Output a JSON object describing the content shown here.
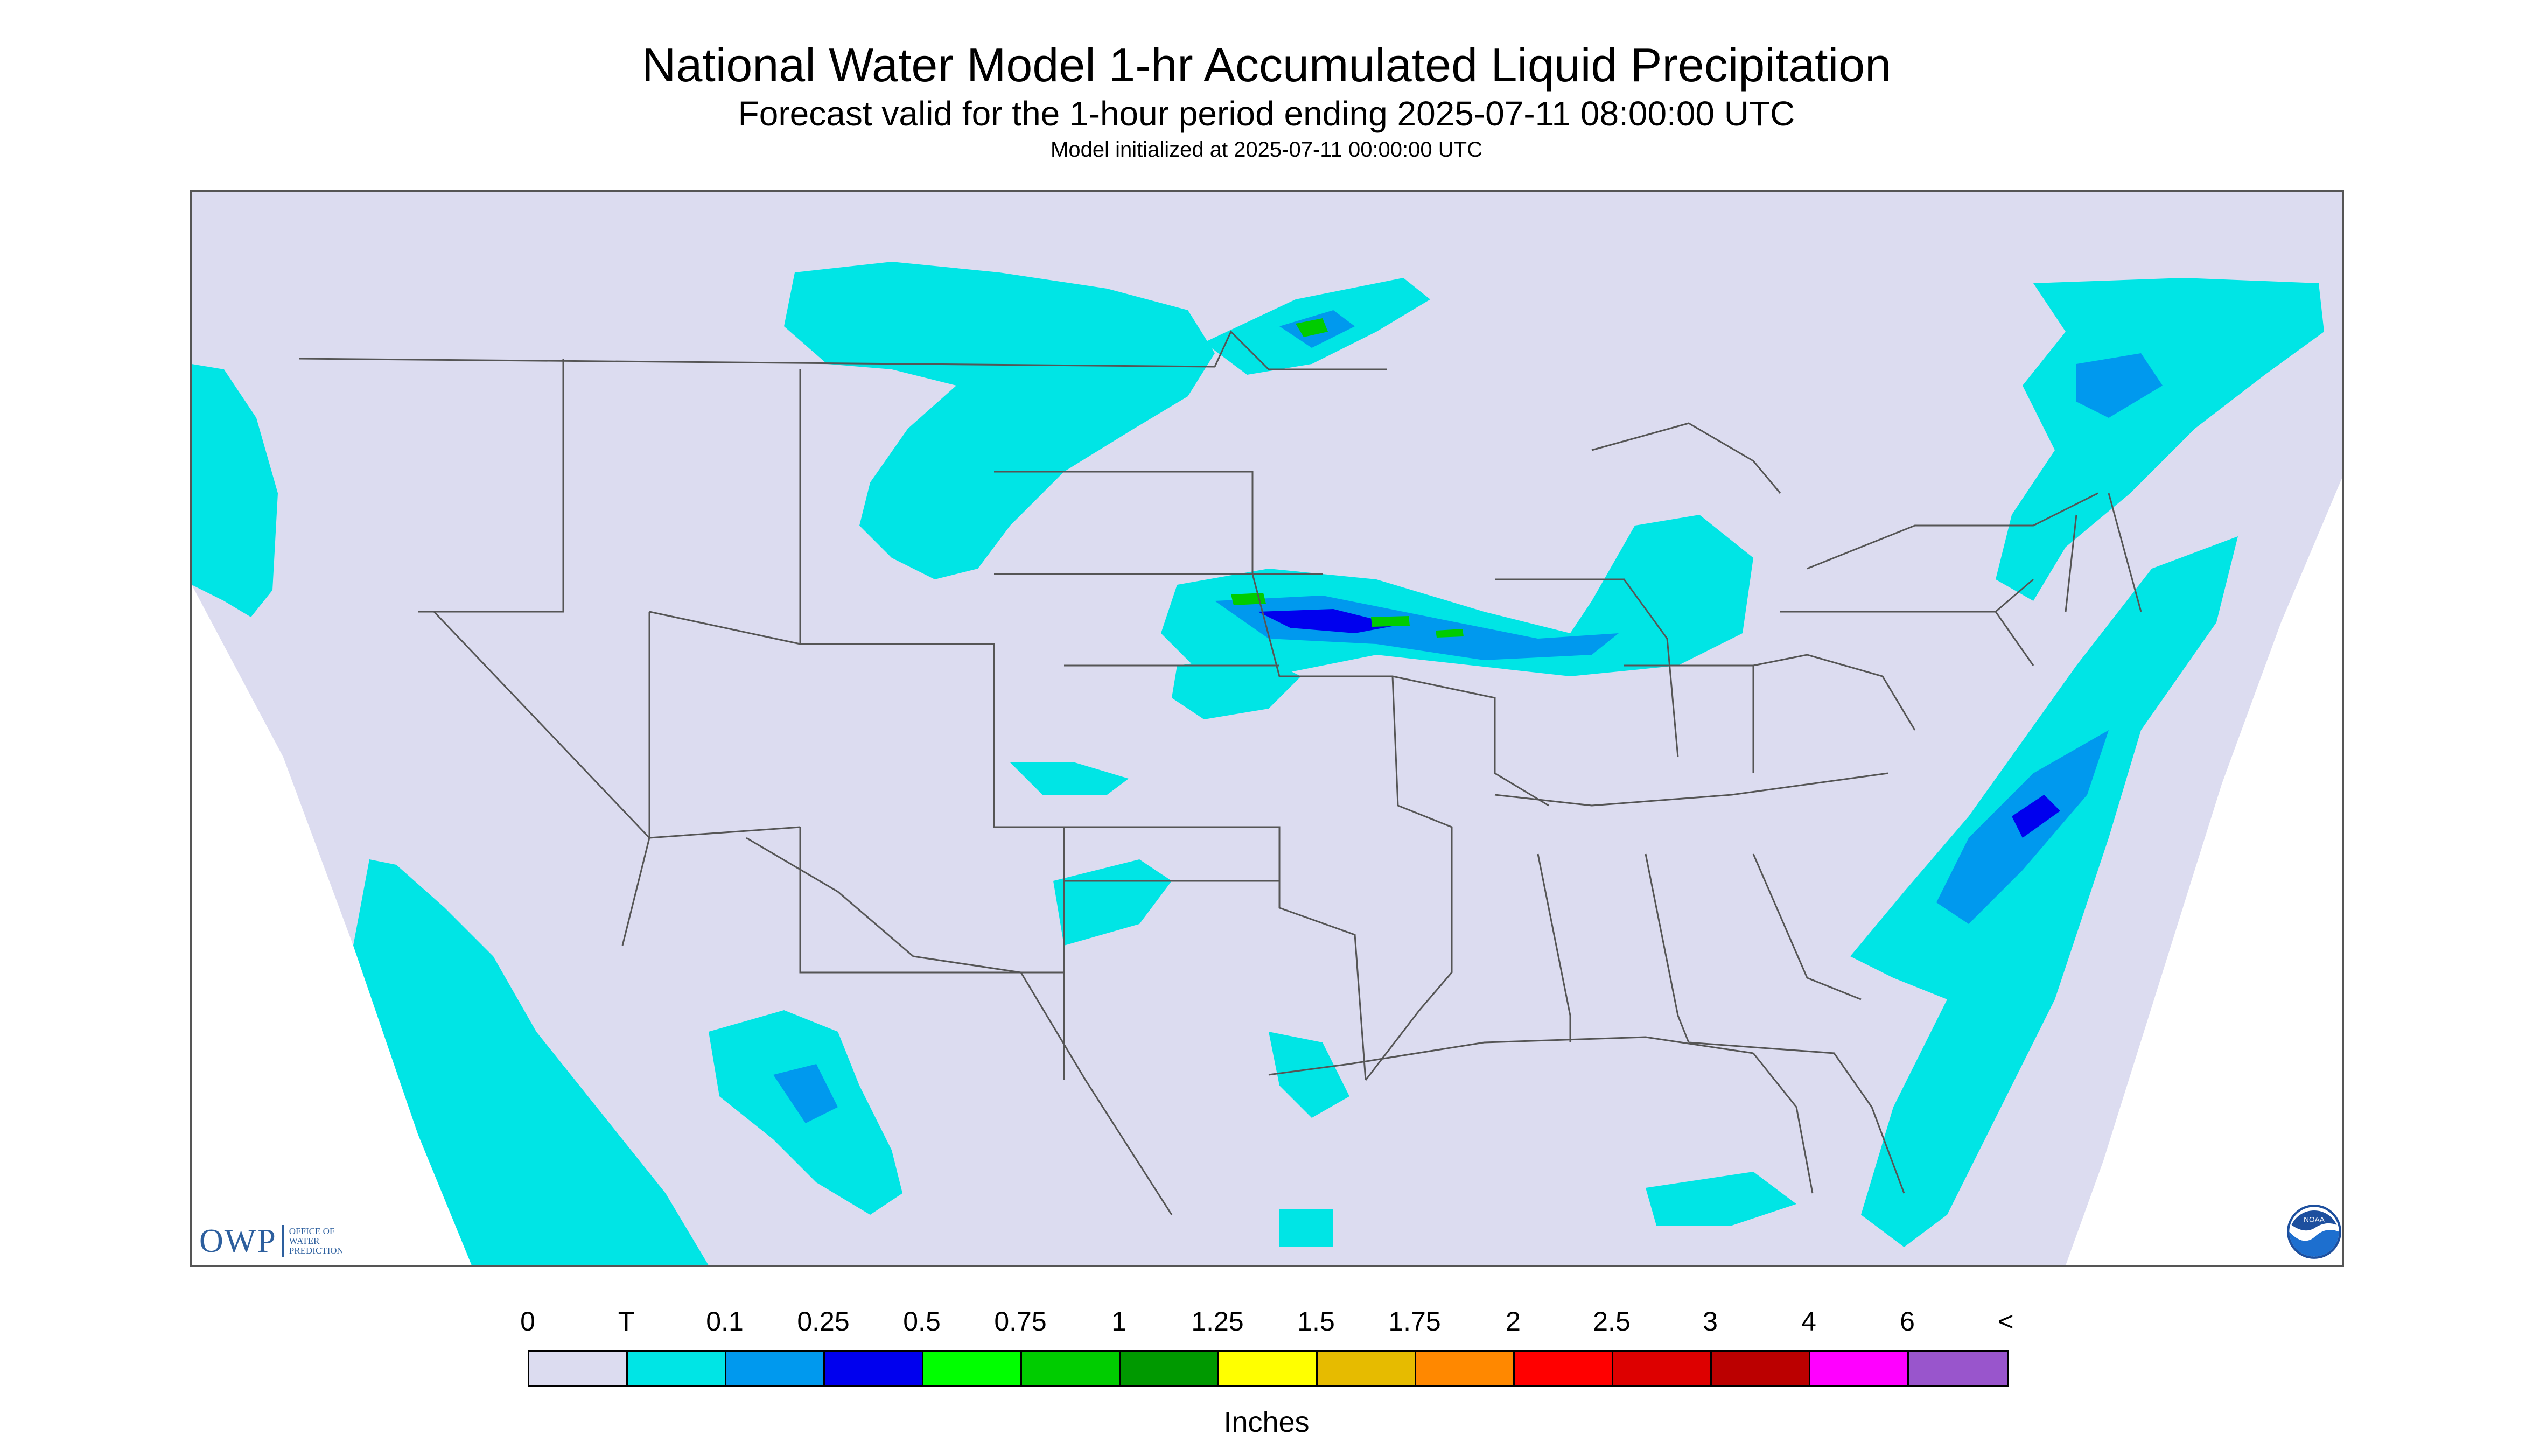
{
  "title": "National Water Model 1-hr Accumulated Liquid Precipitation",
  "subtitle": "Forecast valid for the 1-hour period ending 2025-07-11 08:00:00 UTC",
  "init_text": "Model initialized at 2025-07-11 00:00:00 UTC",
  "logos": {
    "owp_text": "OWP",
    "owp_subtext": [
      "OFFICE OF",
      "WATER",
      "PREDICTION"
    ],
    "noaa_text": "NOAA"
  },
  "legend": {
    "labels": [
      "0",
      "T",
      "0.1",
      "0.25",
      "0.5",
      "0.75",
      "1",
      "1.25",
      "1.5",
      "1.75",
      "2",
      "2.5",
      "3",
      "4",
      "6",
      "<"
    ],
    "colors": [
      "#dcdcf0",
      "#00e5e5",
      "#0099ee",
      "#0000ee",
      "#00ff00",
      "#00cc00",
      "#009900",
      "#ffff00",
      "#e6bb00",
      "#ff8800",
      "#ff0000",
      "#dd0000",
      "#bb0000",
      "#ff00ff",
      "#9955cc"
    ],
    "units": "Inches"
  },
  "colors": {
    "map_bg": "#dcdcf0",
    "trace": "#00e5e5",
    "light": "#0099ee",
    "heavy": "#0000ee",
    "green": "#00cc00",
    "boundary": "#555555"
  }
}
